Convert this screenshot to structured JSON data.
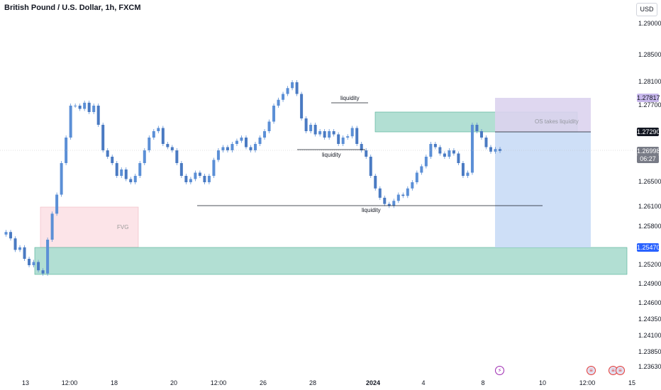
{
  "header": {
    "title": "British Pound / U.S. Dollar, 1h, FXCM",
    "currency_button": "USD"
  },
  "chart_data": {
    "type": "candlestick",
    "title": "British Pound / U.S. Dollar, 1h, FXCM",
    "y_ticks": [
      "1.29000",
      "1.28500",
      "1.28100",
      "1.27700",
      "1.26500",
      "1.26100",
      "1.25800",
      "1.25200",
      "1.24900",
      "1.24600",
      "1.24350",
      "1.24100",
      "1.23850",
      "1.23630"
    ],
    "x_ticks": [
      "13",
      "12:00",
      "18",
      "20",
      "12:00",
      "26",
      "28",
      "2024",
      "4",
      "8",
      "10",
      "12:00",
      "15"
    ],
    "price_labels": {
      "target": "1.27817",
      "stop": "1.27290",
      "current": "1.26998",
      "countdown": "06:27",
      "entry": "1.25470"
    },
    "annotations": {
      "fvg": "FVG",
      "liquidity_top": "liquidity",
      "liquidity_mid": "liquidity",
      "liquidity_low": "liquidity",
      "os_label": "OS takes liquidity"
    },
    "colors": {
      "candles": "#5b8fd6",
      "fvg_zone": "#fce4e8",
      "demand_zone": "#b2dfd3",
      "target_zone": "#dcd3ee",
      "profit_zone": "#c9dcf6",
      "price_line": "#c0c0c0"
    },
    "path": [
      1.2568,
      1.2572,
      1.2562,
      1.2544,
      1.2548,
      1.253,
      1.252,
      1.2525,
      1.2512,
      1.2507,
      1.256,
      1.26,
      1.263,
      1.268,
      1.272,
      1.277,
      1.277,
      1.2765,
      1.2775,
      1.276,
      1.277,
      1.274,
      1.27,
      1.269,
      1.268,
      1.266,
      1.267,
      1.2655,
      1.265,
      1.266,
      1.268,
      1.27,
      1.272,
      1.273,
      1.2735,
      1.271,
      1.2705,
      1.27,
      1.268,
      1.266,
      1.265,
      1.2655,
      1.2665,
      1.266,
      1.265,
      1.266,
      1.2685,
      1.27,
      1.2705,
      1.27,
      1.271,
      1.2715,
      1.272,
      1.2705,
      1.27,
      1.271,
      1.272,
      1.273,
      1.2745,
      1.277,
      1.278,
      1.279,
      1.28,
      1.281,
      1.279,
      1.275,
      1.273,
      1.274,
      1.2725,
      1.273,
      1.272,
      1.273,
      1.2725,
      1.271,
      1.272,
      1.2722,
      1.2735,
      1.271,
      1.27,
      1.269,
      1.266,
      1.264,
      1.2625,
      1.2615,
      1.2612,
      1.262,
      1.263,
      1.2628,
      1.264,
      1.265,
      1.2665,
      1.2675,
      1.269,
      1.271,
      1.2705,
      1.2695,
      1.269,
      1.27,
      1.2695,
      1.268,
      1.266,
      1.2665,
      1.274,
      1.273,
      1.272,
      1.2705,
      1.2698,
      1.2702,
      1.2699
    ]
  }
}
